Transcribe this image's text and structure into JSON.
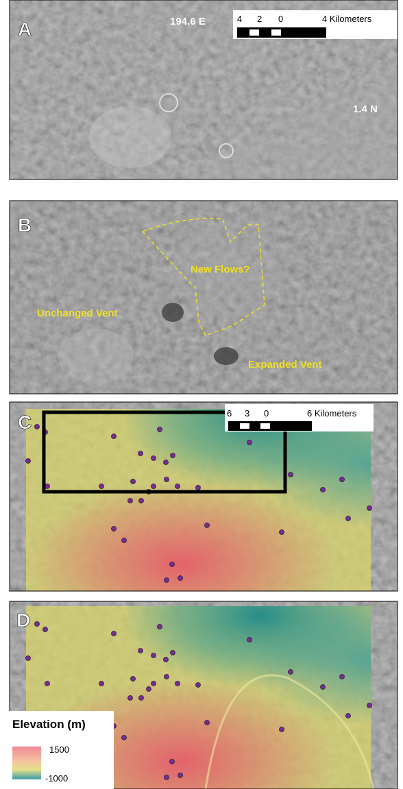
{
  "panels": [
    {
      "label": "A",
      "annotations": [
        "194.6 E",
        "1.4 N"
      ],
      "scale_bar": [
        "4",
        "2",
        "0",
        "4 Kilometers"
      ]
    },
    {
      "label": "B",
      "annotations": [
        "New Flows?",
        "Unchanged Vent",
        "Expanded Vent"
      ]
    },
    {
      "label": "C",
      "scale_bar": [
        "6",
        "3",
        "0",
        "6 Kilometers"
      ]
    },
    {
      "label": "D"
    }
  ],
  "legend": {
    "title": "Elevation (m)",
    "max": "1500",
    "min": "-1000"
  }
}
